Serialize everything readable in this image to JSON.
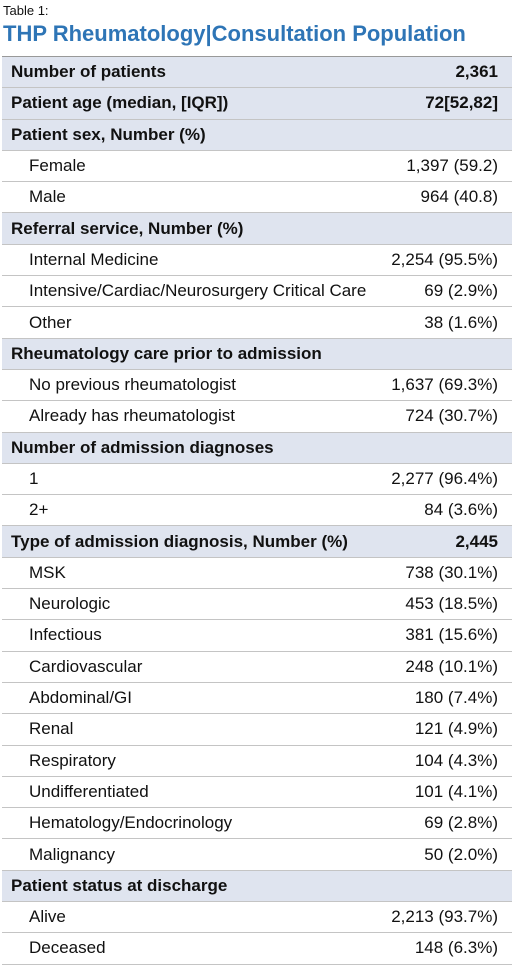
{
  "caption": "Table 1:",
  "title": "THP Rheumatology|Consultation Population",
  "sections": [
    {
      "label": "Number of patients",
      "value": "2,361"
    },
    {
      "label": "Patient age (median, [IQR])",
      "value": "72[52,82]"
    },
    {
      "label": "Patient sex, Number (%)",
      "items": [
        [
          "Female",
          "1,397 (59.2)"
        ],
        [
          "Male",
          "964 (40.8)"
        ]
      ]
    },
    {
      "label": "Referral service, Number (%)",
      "items": [
        [
          "Internal Medicine",
          "2,254 (95.5%)"
        ],
        [
          "Intensive/Cardiac/Neurosurgery Critical Care",
          "69 (2.9%)"
        ],
        [
          "Other",
          "38 (1.6%)"
        ]
      ]
    },
    {
      "label": "Rheumatology care prior to admission",
      "items": [
        [
          "No previous rheumatologist",
          "1,637 (69.3%)"
        ],
        [
          "Already has rheumatologist",
          "724 (30.7%)"
        ]
      ]
    },
    {
      "label": "Number of admission diagnoses",
      "items": [
        [
          "1",
          "2,277 (96.4%)"
        ],
        [
          "2+",
          "84 (3.6%)"
        ]
      ]
    },
    {
      "label": "Type of admission diagnosis, Number (%)",
      "value": "2,445",
      "items": [
        [
          "MSK",
          "738 (30.1%)"
        ],
        [
          "Neurologic",
          "453 (18.5%)"
        ],
        [
          "Infectious",
          "381 (15.6%)"
        ],
        [
          "Cardiovascular",
          "248 (10.1%)"
        ],
        [
          "Abdominal/GI",
          "180 (7.4%)"
        ],
        [
          "Renal",
          "121 (4.9%)"
        ],
        [
          "Respiratory",
          "104 (4.3%)"
        ],
        [
          "Undifferentiated",
          "101 (4.1%)"
        ],
        [
          "Hematology/Endocrinology",
          "69 (2.8%)"
        ],
        [
          "Malignancy",
          "50 (2.0%)"
        ]
      ]
    },
    {
      "label": "Patient status at discharge",
      "items": [
        [
          "Alive",
          "2,213 (93.7%)"
        ],
        [
          "Deceased",
          "148 (6.3%)"
        ]
      ]
    }
  ]
}
